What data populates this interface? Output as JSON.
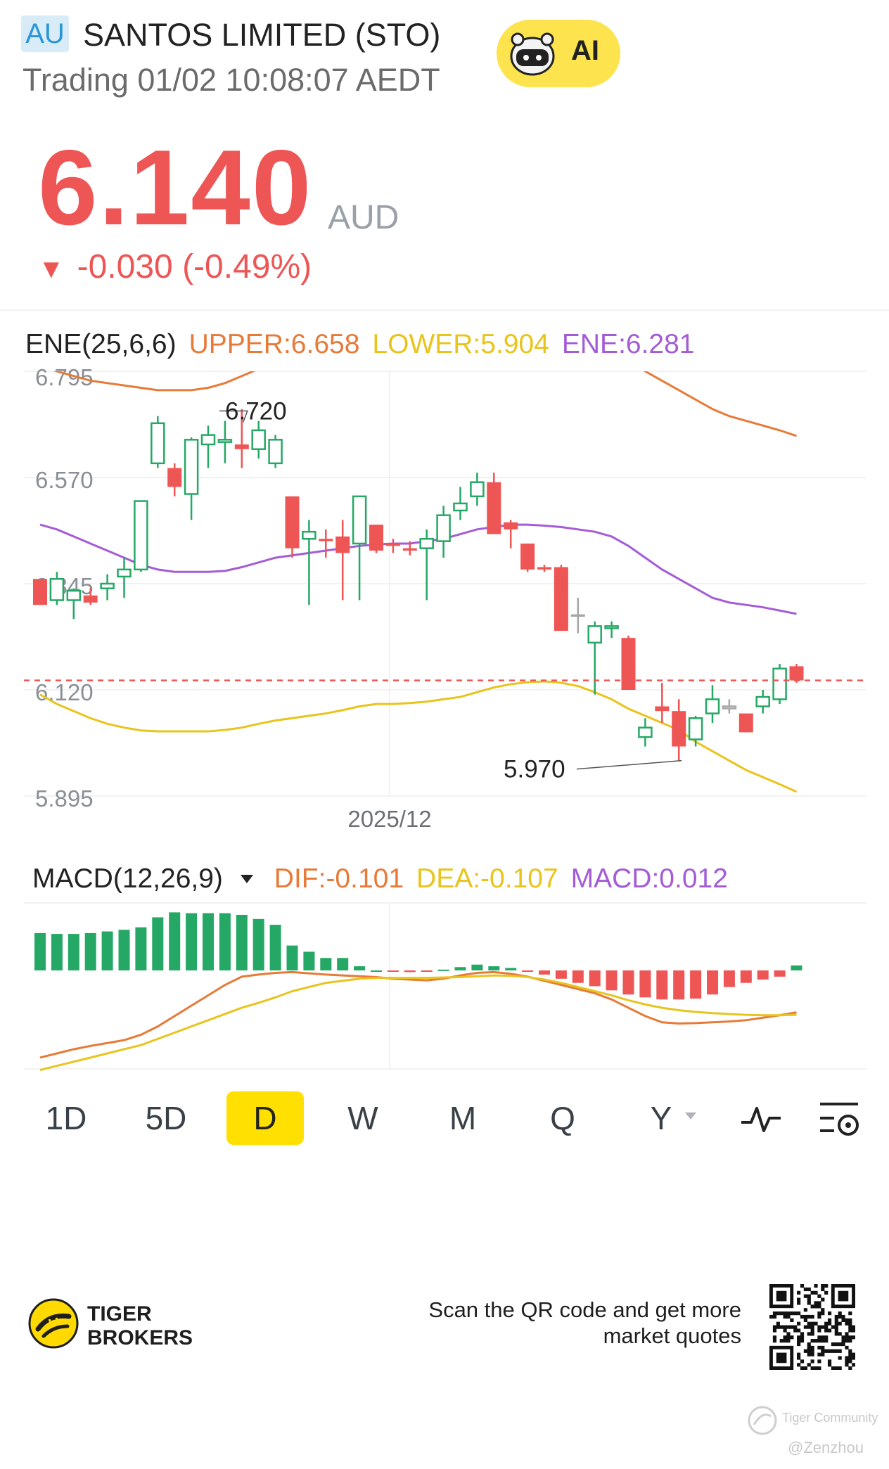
{
  "header": {
    "market_badge": "AU",
    "stock_name": "SANTOS LIMITED (STO)",
    "status": "Trading 01/02 10:08:07 AEDT",
    "ai_button": "AI"
  },
  "quote": {
    "price": "6.140",
    "currency": "AUD",
    "change_arrow": "▼",
    "change": "-0.030 (-0.49%)",
    "color_down": "#ee5555"
  },
  "ene": {
    "name": "ENE(25,6,6)",
    "upper": "UPPER:6.658",
    "lower": "LOWER:5.904",
    "ene": "ENE:6.281",
    "colors": {
      "upper": "#e87a38",
      "lower": "#e8c41c",
      "ene": "#a45cd6"
    }
  },
  "chart_data": [
    {
      "type": "candlestick",
      "y_ticks": [
        "6.795",
        "6.570",
        "6.345",
        "6.120",
        "5.895"
      ],
      "x_tick": "2025/12",
      "ylim": [
        5.895,
        6.795
      ],
      "last_price_line": 6.14,
      "annotations": [
        {
          "text": "6.720",
          "value": 6.72
        },
        {
          "text": "5.970",
          "value": 5.97
        }
      ],
      "candles": [
        [
          6.355,
          6.3,
          6.355,
          6.3
        ],
        [
          6.31,
          6.355,
          6.37,
          6.3
        ],
        [
          6.31,
          6.33,
          6.335,
          6.27
        ],
        [
          6.32,
          6.305,
          6.335,
          6.3
        ],
        [
          6.335,
          6.345,
          6.365,
          6.31
        ],
        [
          6.36,
          6.375,
          6.4,
          6.315
        ],
        [
          6.375,
          6.52,
          6.52,
          6.37
        ],
        [
          6.6,
          6.685,
          6.7,
          6.59
        ],
        [
          6.59,
          6.55,
          6.6,
          6.53
        ],
        [
          6.535,
          6.65,
          6.655,
          6.48
        ],
        [
          6.64,
          6.66,
          6.68,
          6.59
        ],
        [
          6.645,
          6.65,
          6.69,
          6.6
        ],
        [
          6.64,
          6.63,
          6.715,
          6.59
        ],
        [
          6.63,
          6.67,
          6.69,
          6.61
        ],
        [
          6.6,
          6.65,
          6.66,
          6.59
        ],
        [
          6.53,
          6.42,
          6.53,
          6.4
        ],
        [
          6.44,
          6.455,
          6.48,
          6.3
        ],
        [
          6.44,
          6.435,
          6.46,
          6.4
        ],
        [
          6.445,
          6.41,
          6.48,
          6.31
        ],
        [
          6.43,
          6.53,
          6.53,
          6.31
        ],
        [
          6.47,
          6.415,
          6.47,
          6.41
        ],
        [
          6.43,
          6.425,
          6.44,
          6.41
        ],
        [
          6.42,
          6.415,
          6.435,
          6.405
        ],
        [
          6.42,
          6.44,
          6.46,
          6.31
        ],
        [
          6.435,
          6.49,
          6.51,
          6.4
        ],
        [
          6.5,
          6.515,
          6.55,
          6.48
        ],
        [
          6.53,
          6.56,
          6.58,
          6.51
        ],
        [
          6.56,
          6.45,
          6.58,
          6.45
        ],
        [
          6.475,
          6.46,
          6.48,
          6.42
        ],
        [
          6.43,
          6.375,
          6.43,
          6.37
        ],
        [
          6.38,
          6.375,
          6.385,
          6.37
        ],
        [
          6.38,
          6.245,
          6.385,
          6.245
        ],
        [
          6.28,
          6.275,
          6.315,
          6.24
        ],
        [
          6.22,
          6.255,
          6.265,
          6.11
        ],
        [
          6.255,
          6.255,
          6.265,
          6.23
        ],
        [
          6.23,
          6.12,
          6.235,
          6.12
        ],
        [
          6.02,
          6.04,
          6.06,
          6.0
        ],
        [
          6.085,
          6.075,
          6.135,
          6.05
        ],
        [
          6.075,
          6.0,
          6.1,
          5.97
        ],
        [
          6.015,
          6.06,
          6.065,
          6.0
        ],
        [
          6.07,
          6.1,
          6.13,
          6.05
        ],
        [
          6.085,
          6.085,
          6.1,
          6.07
        ],
        [
          6.07,
          6.03,
          6.07,
          6.03
        ],
        [
          6.085,
          6.105,
          6.12,
          6.07
        ],
        [
          6.1,
          6.165,
          6.175,
          6.09
        ],
        [
          6.17,
          6.14,
          6.175,
          6.135
        ]
      ],
      "series": [
        {
          "name": "UPPER",
          "color": "#e87a38",
          "values": [
            6.805,
            6.795,
            6.785,
            6.775,
            6.77,
            6.765,
            6.76,
            6.755,
            6.755,
            6.755,
            6.76,
            6.77,
            6.785,
            6.8,
            6.81,
            6.82,
            6.83,
            6.838,
            6.845,
            6.852,
            6.86,
            6.87,
            6.88,
            6.885,
            6.89,
            6.895,
            6.9,
            6.902,
            6.9,
            6.89,
            6.88,
            6.87,
            6.86,
            6.85,
            6.835,
            6.815,
            6.795,
            6.775,
            6.755,
            6.735,
            6.715,
            6.7,
            6.69,
            6.68,
            6.67,
            6.658
          ]
        },
        {
          "name": "ENE",
          "color": "#a45cd6",
          "values": [
            6.47,
            6.46,
            6.445,
            6.43,
            6.415,
            6.4,
            6.385,
            6.375,
            6.37,
            6.37,
            6.37,
            6.372,
            6.38,
            6.39,
            6.4,
            6.405,
            6.41,
            6.415,
            6.42,
            6.425,
            6.428,
            6.43,
            6.43,
            6.435,
            6.44,
            6.45,
            6.46,
            6.465,
            6.47,
            6.47,
            6.468,
            6.465,
            6.46,
            6.455,
            6.445,
            6.425,
            6.4,
            6.375,
            6.355,
            6.335,
            6.315,
            6.305,
            6.3,
            6.295,
            6.288,
            6.281
          ]
        },
        {
          "name": "LOWER",
          "color": "#e8c41c",
          "values": [
            6.11,
            6.09,
            6.075,
            6.06,
            6.048,
            6.04,
            6.034,
            6.032,
            6.032,
            6.032,
            6.032,
            6.035,
            6.04,
            6.048,
            6.055,
            6.06,
            6.065,
            6.07,
            6.077,
            6.085,
            6.09,
            6.09,
            6.092,
            6.095,
            6.1,
            6.105,
            6.115,
            6.125,
            6.132,
            6.136,
            6.138,
            6.135,
            6.128,
            6.115,
            6.1,
            6.08,
            6.065,
            6.05,
            6.035,
            6.01,
            5.99,
            5.97,
            5.95,
            5.935,
            5.92,
            5.904
          ]
        }
      ]
    },
    {
      "type": "bar",
      "name": "MACD(12,26,9)",
      "series": [
        {
          "name": "MACD",
          "color_up": "#25a865",
          "color_down": "#ee5555",
          "values": [
            0.09,
            0.088,
            0.088,
            0.09,
            0.094,
            0.098,
            0.104,
            0.128,
            0.14,
            0.138,
            0.138,
            0.138,
            0.134,
            0.124,
            0.11,
            0.06,
            0.045,
            0.03,
            0.03,
            0.01,
            0.0,
            -0.002,
            -0.004,
            -0.003,
            0.002,
            0.008,
            0.014,
            0.01,
            0.006,
            -0.002,
            -0.01,
            -0.02,
            -0.03,
            -0.038,
            -0.048,
            -0.058,
            -0.065,
            -0.07,
            -0.07,
            -0.068,
            -0.058,
            -0.04,
            -0.03,
            -0.022,
            -0.015,
            0.012
          ]
        },
        {
          "name": "DIF",
          "color": "#e87a38",
          "values": [
            -0.21,
            -0.2,
            -0.19,
            -0.182,
            -0.175,
            -0.168,
            -0.155,
            -0.135,
            -0.11,
            -0.085,
            -0.06,
            -0.035,
            -0.015,
            -0.01,
            -0.006,
            -0.004,
            -0.007,
            -0.01,
            -0.012,
            -0.014,
            -0.016,
            -0.02,
            -0.022,
            -0.024,
            -0.02,
            -0.012,
            -0.006,
            -0.004,
            -0.008,
            -0.015,
            -0.025,
            -0.035,
            -0.045,
            -0.055,
            -0.07,
            -0.09,
            -0.11,
            -0.125,
            -0.128,
            -0.127,
            -0.125,
            -0.123,
            -0.12,
            -0.114,
            -0.108,
            -0.101
          ]
        },
        {
          "name": "DEA",
          "color": "#e8c41c",
          "values": [
            -0.24,
            -0.23,
            -0.22,
            -0.21,
            -0.2,
            -0.19,
            -0.18,
            -0.165,
            -0.15,
            -0.135,
            -0.12,
            -0.105,
            -0.09,
            -0.078,
            -0.065,
            -0.05,
            -0.04,
            -0.03,
            -0.025,
            -0.02,
            -0.018,
            -0.018,
            -0.018,
            -0.018,
            -0.017,
            -0.016,
            -0.014,
            -0.012,
            -0.013,
            -0.016,
            -0.022,
            -0.03,
            -0.04,
            -0.05,
            -0.06,
            -0.072,
            -0.082,
            -0.09,
            -0.096,
            -0.1,
            -0.103,
            -0.105,
            -0.107,
            -0.108,
            -0.108,
            -0.107
          ]
        }
      ]
    }
  ],
  "macd": {
    "name": "MACD(12,26,9)",
    "dropdown_icon": "triangle-down-icon",
    "dif": "DIF:-0.101",
    "dea": "DEA:-0.107",
    "macd": "MACD:0.012"
  },
  "periods": [
    "1D",
    "5D",
    "D",
    "W",
    "M",
    "Q",
    "Y"
  ],
  "active_period": "D",
  "period_icons": [
    "indicator-wave-icon",
    "chart-settings-icon"
  ],
  "footer": {
    "brand": "TIGER BROKERS",
    "brand_line1": "TIGER",
    "brand_line2": "BROKERS",
    "qr_text": "Scan the QR code and get more market quotes"
  },
  "watermark": {
    "community": "Tiger Community",
    "user": "@Zenzhou"
  }
}
